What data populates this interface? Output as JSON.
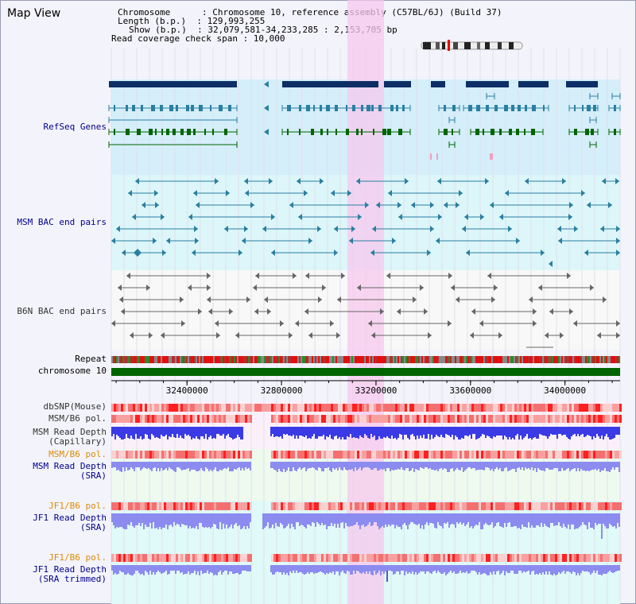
{
  "title": "Map View",
  "info": {
    "line1": "Chromosome      : Chromosome 10, reference assembly (C57BL/6J) (Build 37)",
    "line2": "Length (b.p.)  : 129,993,255",
    "line3": "Show (b.p.)  : 32,079,581-34,233,285 : 2,153,705 bp",
    "line4": "Read coverage check span : 10,000"
  },
  "tracks": {
    "refseq": "RefSeq Genes",
    "msm_bac": "MSM BAC end pairs",
    "b6n_bac": "B6N BAC end pairs",
    "repeat": "Repeat",
    "chromosome": "chromosome 10",
    "dbsnp": "dbSNP(Mouse)",
    "msm_pol": "MSM/B6 pol.",
    "msm_depth_cap_1": "MSM Read Depth",
    "msm_depth_cap_2": "(Capillary)",
    "msm_pol_sra": "MSM/B6 pol.",
    "msm_depth_sra_1": "MSM Read Depth",
    "msm_depth_sra_2": "(SRA)",
    "jf1_pol": "JF1/B6 pol.",
    "jf1_depth_1": "JF1 Read Depth",
    "jf1_depth_2": "(SRA)",
    "jf1_pol_trim": "JF1/B6 pol.",
    "jf1_trim_1": "JF1 Read Depth",
    "jf1_trim_2": "(SRA trimmed)"
  },
  "axis": {
    "ticks": [
      "32400000",
      "32800000",
      "33200000",
      "33600000",
      "34000000"
    ],
    "tick_values": [
      32400000,
      32800000,
      33200000,
      33600000,
      34000000
    ],
    "range": [
      32079581,
      34233285
    ]
  },
  "colors": {
    "highlight": "#f7c8ee",
    "refseq_bg": "#d4eefa",
    "msm_bac_bg": "#dcf6fa",
    "gene_navy": "#0d2f66",
    "gene_teal": "#2a7fa0",
    "gene_green": "#006400",
    "chromosome": "#006400",
    "depth_blue": "#3a3ae6",
    "depth_light": "#8c8cf0"
  }
}
